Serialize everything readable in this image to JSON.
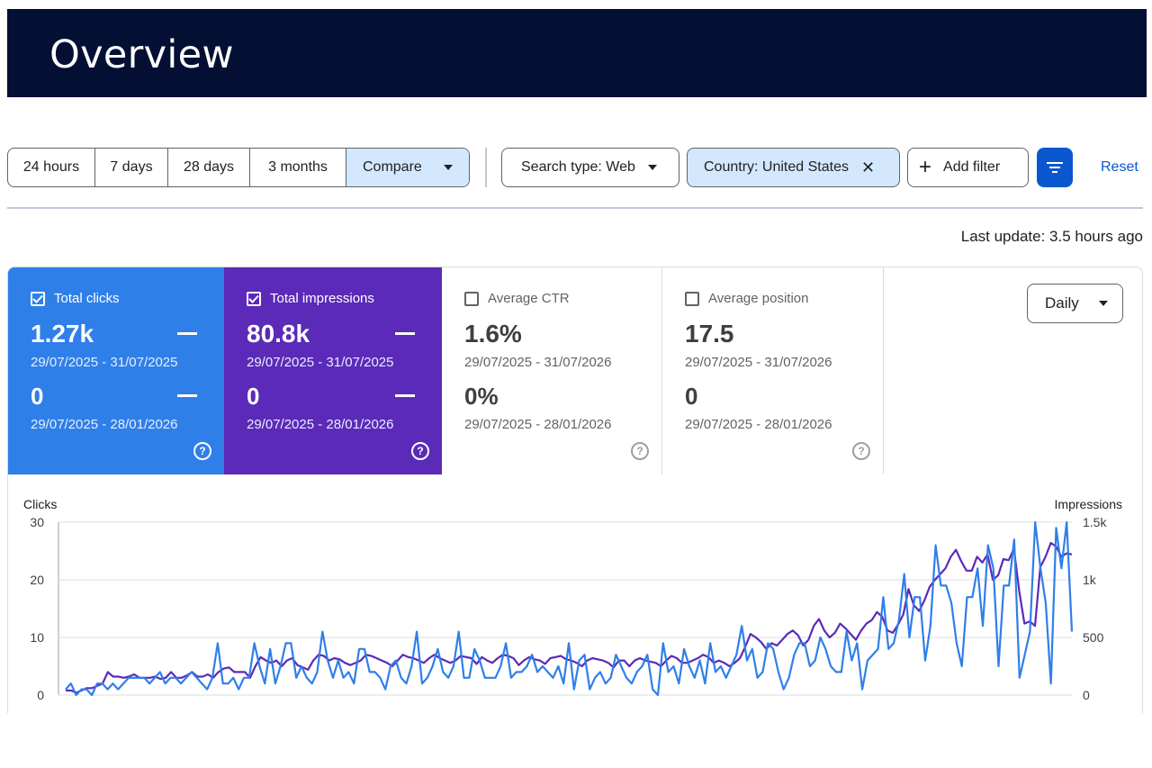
{
  "header": {
    "title": "Overview"
  },
  "toolbar": {
    "ranges": [
      "24 hours",
      "7 days",
      "28 days",
      "3 months"
    ],
    "compare_label": "Compare",
    "search_type_label": "Search type: Web",
    "country_label": "Country: United States",
    "add_filter_label": "Add filter",
    "reset_label": "Reset"
  },
  "last_update": "Last update: 3.5 hours ago",
  "metrics": [
    {
      "label": "Total clicks",
      "checked": true,
      "value1": "1.27k",
      "range1": "29/07/2025 - 31/07/2025",
      "value2": "0",
      "range2": "29/07/2025 - 28/01/2026"
    },
    {
      "label": "Total impressions",
      "checked": true,
      "value1": "80.8k",
      "range1": "29/07/2025 - 31/07/2025",
      "value2": "0",
      "range2": "29/07/2025 - 28/01/2026"
    },
    {
      "label": "Average CTR",
      "checked": false,
      "value1": "1.6%",
      "range1": "29/07/2025 - 31/07/2026",
      "value2": "0%",
      "range2": "29/07/2025 - 28/01/2026"
    },
    {
      "label": "Average position",
      "checked": false,
      "value1": "17.5",
      "range1": "29/07/2025 - 31/07/2026",
      "value2": "0",
      "range2": "29/07/2025 - 28/01/2026"
    }
  ],
  "granularity_label": "Daily",
  "colors": {
    "clicks": "#2f7fe9",
    "impressions": "#5b2ab8",
    "header": "#030f33",
    "accent": "#0b57d0"
  },
  "chart_data": {
    "type": "line",
    "ylabel": "Clicks",
    "y2label": "Impressions",
    "ylim": [
      0,
      30
    ],
    "y2lim": [
      0,
      1500
    ],
    "y_ticks": [
      "0",
      "10",
      "20",
      "30"
    ],
    "y2_ticks": [
      "0",
      "500",
      "1k",
      "1.5k"
    ],
    "grid": true,
    "series": [
      {
        "name": "Total clicks",
        "axis": "left",
        "values": [
          1,
          2,
          0,
          1,
          1,
          0,
          2,
          2,
          1,
          2,
          1,
          2,
          3,
          3,
          3,
          3,
          2,
          3,
          4,
          2,
          3,
          3,
          2,
          3,
          4,
          3,
          2,
          1,
          3,
          9,
          2,
          2,
          3,
          1,
          3,
          3,
          9,
          5,
          2,
          8,
          2,
          5,
          9,
          9,
          3,
          5,
          3,
          2,
          4,
          11,
          6,
          3,
          6,
          3,
          4,
          2,
          8,
          8,
          4,
          4,
          3,
          1,
          5,
          6,
          3,
          2,
          5,
          11,
          2,
          3,
          5,
          8,
          4,
          3,
          5,
          11,
          3,
          3,
          8,
          6,
          3,
          3,
          3,
          5,
          9,
          3,
          4,
          4,
          5,
          7,
          4,
          5,
          4,
          3,
          5,
          2,
          9,
          1,
          6,
          7,
          1,
          3,
          4,
          2,
          3,
          7,
          5,
          3,
          2,
          4,
          5,
          7,
          1,
          0,
          9,
          4,
          5,
          2,
          8,
          5,
          3,
          6,
          2,
          9,
          4,
          5,
          3,
          5,
          7,
          12,
          6,
          8,
          3,
          4,
          9,
          8,
          4,
          1,
          3,
          7,
          9,
          9,
          5,
          6,
          10,
          8,
          5,
          4,
          4,
          11,
          6,
          9,
          1,
          6,
          7,
          8,
          17,
          8,
          9,
          13,
          21,
          10,
          17,
          17,
          6,
          12,
          26,
          19,
          19,
          16,
          9,
          5,
          17,
          17,
          22,
          12,
          26,
          22,
          5,
          19,
          19,
          27,
          3,
          7,
          11,
          30,
          22,
          16,
          2,
          29,
          22,
          30,
          11
        ]
      },
      {
        "name": "Total impressions",
        "axis": "right",
        "values": [
          40,
          40,
          20,
          40,
          60,
          60,
          80,
          100,
          200,
          160,
          160,
          150,
          160,
          180,
          150,
          150,
          150,
          160,
          140,
          150,
          200,
          150,
          150,
          170,
          200,
          160,
          160,
          180,
          150,
          200,
          230,
          240,
          200,
          200,
          200,
          150,
          250,
          330,
          300,
          280,
          300,
          250,
          300,
          320,
          260,
          240,
          220,
          300,
          350,
          340,
          300,
          320,
          310,
          280,
          260,
          280,
          300,
          350,
          340,
          320,
          300,
          280,
          250,
          300,
          350,
          330,
          320,
          300,
          280,
          320,
          350,
          320,
          300,
          280,
          300,
          340,
          330,
          320,
          270,
          330,
          300,
          280,
          320,
          350,
          340,
          320,
          260,
          300,
          330,
          310,
          300,
          270,
          320,
          330,
          340,
          310,
          300,
          280,
          250,
          300,
          320,
          310,
          300,
          280,
          240,
          300,
          300,
          250,
          300,
          320,
          300,
          290,
          280,
          250,
          300,
          340,
          320,
          280,
          280,
          300,
          320,
          350,
          330,
          280,
          300,
          280,
          250,
          280,
          320,
          420,
          530,
          500,
          460,
          400,
          450,
          430,
          480,
          530,
          560,
          520,
          430,
          480,
          600,
          660,
          560,
          500,
          540,
          620,
          580,
          530,
          480,
          560,
          620,
          650,
          720,
          680,
          560,
          540,
          610,
          700,
          920,
          780,
          730,
          820,
          940,
          1000,
          1050,
          1100,
          1200,
          1260,
          1160,
          1080,
          1080,
          1200,
          1150,
          1220,
          1000,
          1040,
          1180,
          1170,
          1270,
          900,
          620,
          640,
          600,
          1110,
          1200,
          1320,
          1290,
          1200,
          1230,
          1220
        ]
      }
    ]
  }
}
